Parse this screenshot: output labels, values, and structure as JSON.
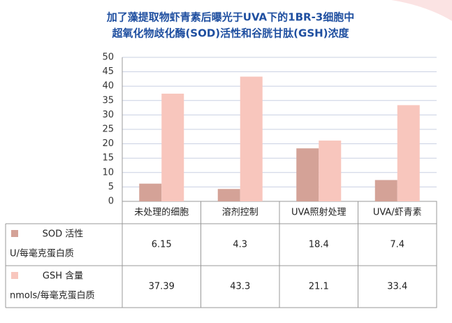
{
  "chart_data": {
    "type": "bar",
    "title": [
      "加了藻提取物虾青素后曝光于UVA下的1BR-3细胞中",
      "超氧化物歧化酶(SOD)活性和谷胱甘肽(GSH)浓度"
    ],
    "categories": [
      "未处理的细胞",
      "溶剂控制",
      "UVA照射处理",
      "UVA/虾青素"
    ],
    "series": [
      {
        "name": "SOD 活性",
        "unit": "U/每毫克蛋白质",
        "color": "#d4a297",
        "values": [
          6.15,
          4.3,
          18.4,
          7.4
        ]
      },
      {
        "name": "GSH 含量",
        "unit": "nmols/每毫克蛋白质",
        "color": "#f8c6bd",
        "values": [
          37.39,
          43.3,
          21.1,
          33.4
        ]
      }
    ],
    "ylim": [
      0,
      50
    ],
    "yticks": [
      0,
      5,
      10,
      15,
      20,
      25,
      30,
      35,
      40,
      45,
      50
    ],
    "grid": true
  }
}
